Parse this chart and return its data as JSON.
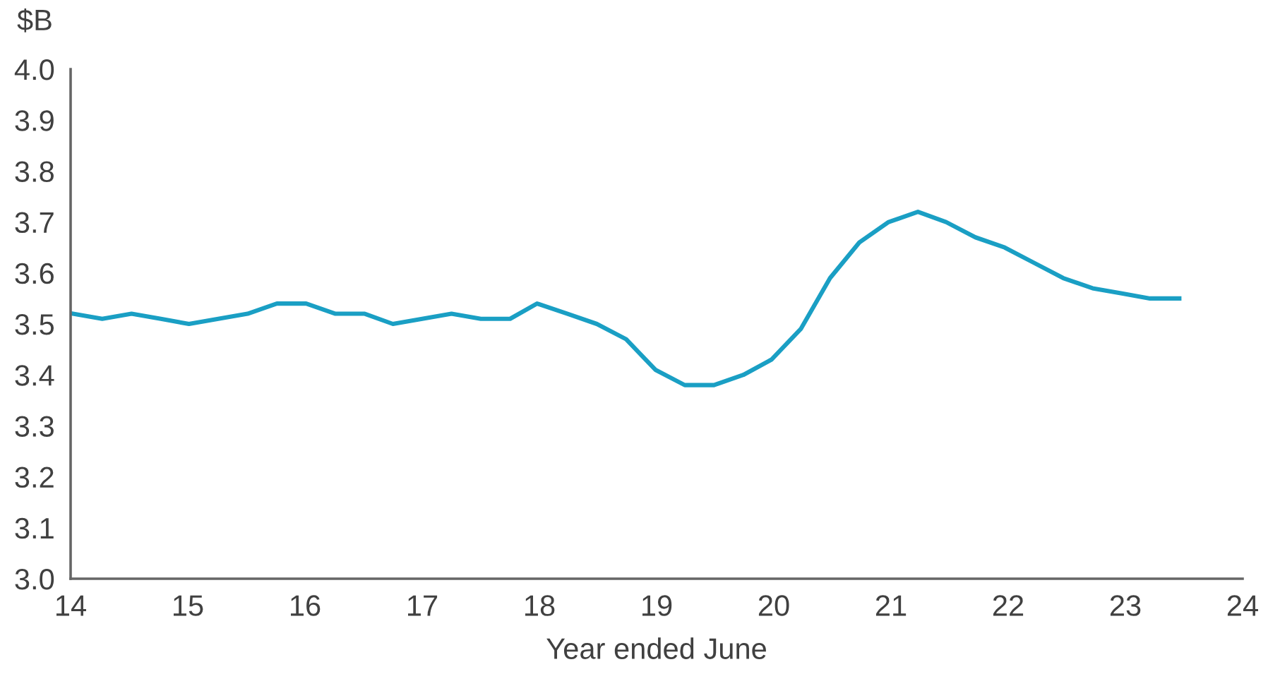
{
  "chart_data": {
    "type": "line",
    "ylabel": "$B",
    "xlabel": "Year ended June",
    "x": [
      14.02,
      14.27,
      14.52,
      14.77,
      15.01,
      15.26,
      15.51,
      15.76,
      16.01,
      16.26,
      16.51,
      16.75,
      17.0,
      17.25,
      17.5,
      17.75,
      17.98,
      18.24,
      18.49,
      18.74,
      18.99,
      19.24,
      19.49,
      19.74,
      19.98,
      20.23,
      20.48,
      20.73,
      20.98,
      21.23,
      21.47,
      21.72,
      21.97,
      22.22,
      22.47,
      22.72,
      22.97,
      23.21,
      23.46
    ],
    "series": [
      {
        "color": "#1a9fc4",
        "values": [
          3.52,
          3.51,
          3.52,
          3.51,
          3.5,
          3.51,
          3.52,
          3.54,
          3.54,
          3.52,
          3.52,
          3.5,
          3.51,
          3.52,
          3.51,
          3.51,
          3.54,
          3.52,
          3.5,
          3.47,
          3.41,
          3.38,
          3.38,
          3.4,
          3.43,
          3.49,
          3.59,
          3.66,
          3.7,
          3.72,
          3.7,
          3.67,
          3.65,
          3.62,
          3.59,
          3.57,
          3.56,
          3.55,
          3.55
        ]
      }
    ],
    "xlim": [
      14,
      24
    ],
    "xticks": [
      14,
      15,
      16,
      17,
      18,
      19,
      20,
      21,
      22,
      23,
      24
    ],
    "ylim": [
      3.0,
      4.0
    ],
    "yticks": [
      {
        "value": 3.0,
        "label": "3.0"
      },
      3.1,
      3.2,
      3.3,
      3.4,
      3.5,
      3.6,
      3.7,
      3.8,
      3.9,
      {
        "value": 4.0,
        "label": "4.0"
      }
    ],
    "grid": false,
    "legend": false,
    "marker": "none",
    "line_style": "solid"
  }
}
